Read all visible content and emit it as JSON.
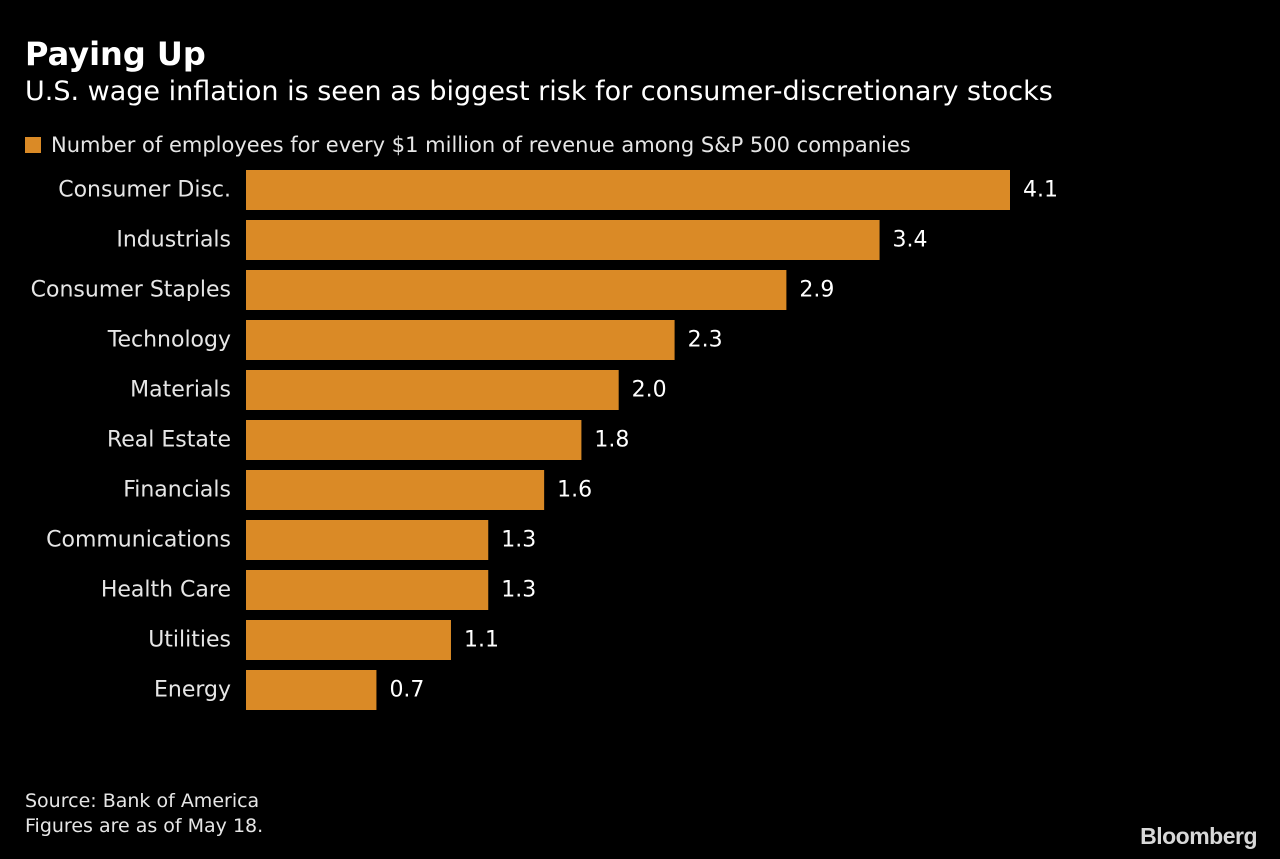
{
  "header": {
    "title": "Paying Up",
    "subtitle": "U.S. wage inflation is seen as biggest risk for consumer-discretionary stocks"
  },
  "legend": {
    "label": "Number of employees for every $1 million of revenue among S&P 500 companies"
  },
  "footer": {
    "source": "Source: Bank of America",
    "note": "Figures are as of May 18.",
    "brand": "Bloomberg"
  },
  "colors": {
    "background": "#000000",
    "bar": "#da8a26",
    "text": "#ffffff"
  },
  "chart_data": {
    "type": "bar",
    "orientation": "horizontal",
    "categories": [
      "Consumer Disc.",
      "Industrials",
      "Consumer Staples",
      "Technology",
      "Materials",
      "Real Estate",
      "Financials",
      "Communications",
      "Health Care",
      "Utilities",
      "Energy"
    ],
    "values": [
      4.1,
      3.4,
      2.9,
      2.3,
      2.0,
      1.8,
      1.6,
      1.3,
      1.3,
      1.1,
      0.7
    ],
    "data_labels": [
      "4.1",
      "3.4",
      "2.9",
      "2.3",
      "2.0",
      "1.8",
      "1.6",
      "1.3",
      "1.3",
      "1.1",
      "0.7"
    ],
    "xlim": [
      0,
      4.1
    ],
    "grid": false,
    "legend_position": "top-left"
  }
}
